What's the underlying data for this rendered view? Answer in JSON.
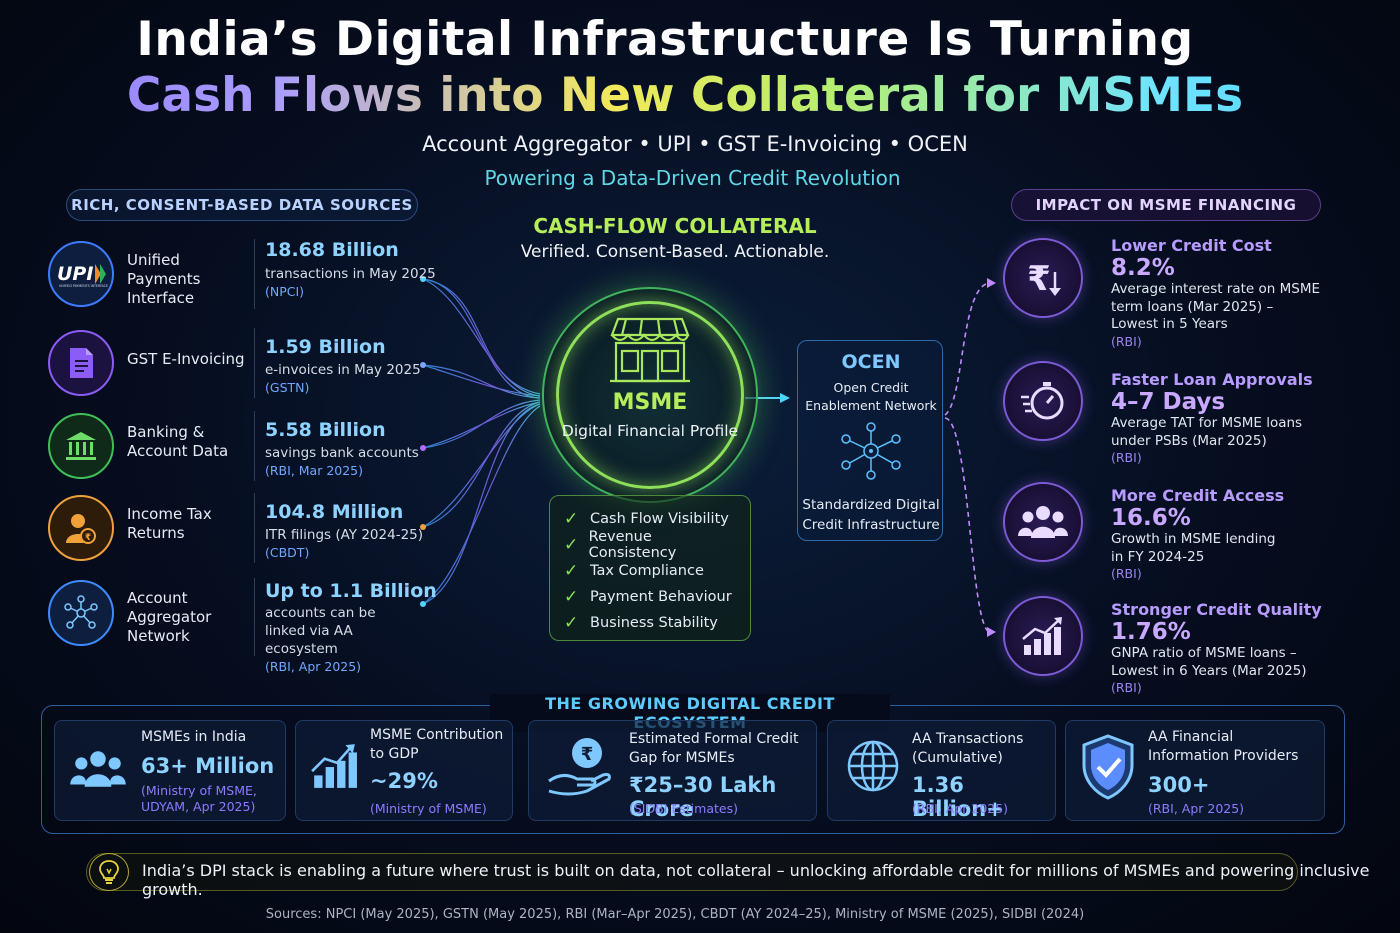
{
  "header": {
    "title_line1": "India’s Digital Infrastructure Is Turning",
    "title_line2": "Cash Flows into New Collateral for MSMEs",
    "subtitle": "Account Aggregator • UPI • GST E-Invoicing • OCEN",
    "tagline": "Powering a Data-Driven Credit Revolution"
  },
  "left_panel": {
    "heading": "RICH, CONSENT-BASED DATA SOURCES",
    "sources": [
      {
        "name": "Unified Payments Interface",
        "stat": "18.68 Billion",
        "desc": "transactions in May 2025",
        "source": "(NPCI)",
        "icon": "upi-logo-icon",
        "logo_text": "UPI",
        "logo_sub": "UNIFIED PAYMENTS INTERFACE",
        "color": "#3c7bff"
      },
      {
        "name": "GST E-Invoicing",
        "stat": "1.59 Billion",
        "desc": "e-invoices in May 2025",
        "source": "(GSTN)",
        "icon": "document-icon",
        "color": "#8b5cf6"
      },
      {
        "name": "Banking & Account Data",
        "stat": "5.58 Billion",
        "desc": "savings bank accounts",
        "source": "(RBI, Mar 2025)",
        "icon": "bank-icon",
        "color": "#3fbf5a"
      },
      {
        "name": "Income Tax Returns",
        "stat": "104.8 Million",
        "desc": "ITR filings (AY 2024-25)",
        "source": "(CBDT)",
        "icon": "tax-person-icon",
        "color": "#f0a13a"
      },
      {
        "name": "Account Aggregator Network",
        "stat": "Up to 1.1 Billion",
        "desc": "accounts can be linked via AA ecosystem",
        "source": "(RBI, Apr 2025)",
        "icon": "network-icon",
        "color": "#3c8bff"
      }
    ]
  },
  "center": {
    "title": "CASH-FLOW COLLATERAL",
    "subtitle": "Verified. Consent-Based. Actionable.",
    "msme_name": "MSME",
    "msme_desc": "Digital Financial Profile",
    "checklist": [
      "Cash Flow Visibility",
      "Revenue Consistency",
      "Tax Compliance",
      "Payment Behaviour",
      "Business Stability"
    ],
    "ocen": {
      "title": "OCEN",
      "subtitle": "Open Credit Enablement Network",
      "footer": "Standardized Digital Credit Infrastructure"
    }
  },
  "right_panel": {
    "heading": "IMPACT ON MSME FINANCING",
    "items": [
      {
        "title": "Lower Credit Cost",
        "value": "8.2%",
        "desc": "Average interest rate on MSME term loans (Mar 2025) – Lowest in 5 Years",
        "source": "(RBI)",
        "icon": "rupee-down-icon"
      },
      {
        "title": "Faster Loan Approvals",
        "value": "4–7 Days",
        "desc": "Average TAT for MSME loans under PSBs (Mar 2025)",
        "source": "(RBI)",
        "icon": "stopwatch-icon"
      },
      {
        "title": "More Credit Access",
        "value": "16.6%",
        "desc": "Growth in MSME lending in FY 2024-25",
        "source": "(RBI)",
        "icon": "people-group-icon"
      },
      {
        "title": "Stronger Credit Quality",
        "value": "1.76%",
        "desc": "GNPA ratio of MSME loans – Lowest in 6 Years (Mar 2025)",
        "source": "(RBI)",
        "icon": "growth-chart-icon"
      }
    ]
  },
  "ecosystem": {
    "heading": "THE GROWING DIGITAL CREDIT ECOSYSTEM",
    "cards": [
      {
        "label": "MSMEs in India",
        "value": "63+ Million",
        "source": "(Ministry of MSME, UDYAM, Apr 2025)",
        "icon": "people-group-icon"
      },
      {
        "label": "MSME Contribution to GDP",
        "value": "~29%",
        "source": "(Ministry of MSME)",
        "icon": "bar-growth-icon"
      },
      {
        "label": "Estimated Formal Credit Gap for MSMEs",
        "value": "₹25–30 Lakh Crore",
        "source": "(SIDBI Estimates)",
        "icon": "rupee-hand-icon"
      },
      {
        "label": "AA Transactions (Cumulative)",
        "value": "1.36 Billion+",
        "source": "(RBI, Apr 2025)",
        "icon": "globe-icon"
      },
      {
        "label": "AA Financial Information Providers",
        "value": "300+",
        "source": "(RBI, Apr 2025)",
        "icon": "shield-check-icon"
      }
    ]
  },
  "footer": {
    "message": "India’s DPI stack is enabling a future where trust is built on data, not collateral – unlocking affordable credit for millions of MSMEs and powering inclusive growth.",
    "sources": "Sources: NPCI (May 2025), GSTN (May 2025), RBI (Mar–Apr 2025), CBDT (AY 2024–25), Ministry of MSME (2025), SIDBI (2024)",
    "icon": "lightbulb-icon"
  }
}
